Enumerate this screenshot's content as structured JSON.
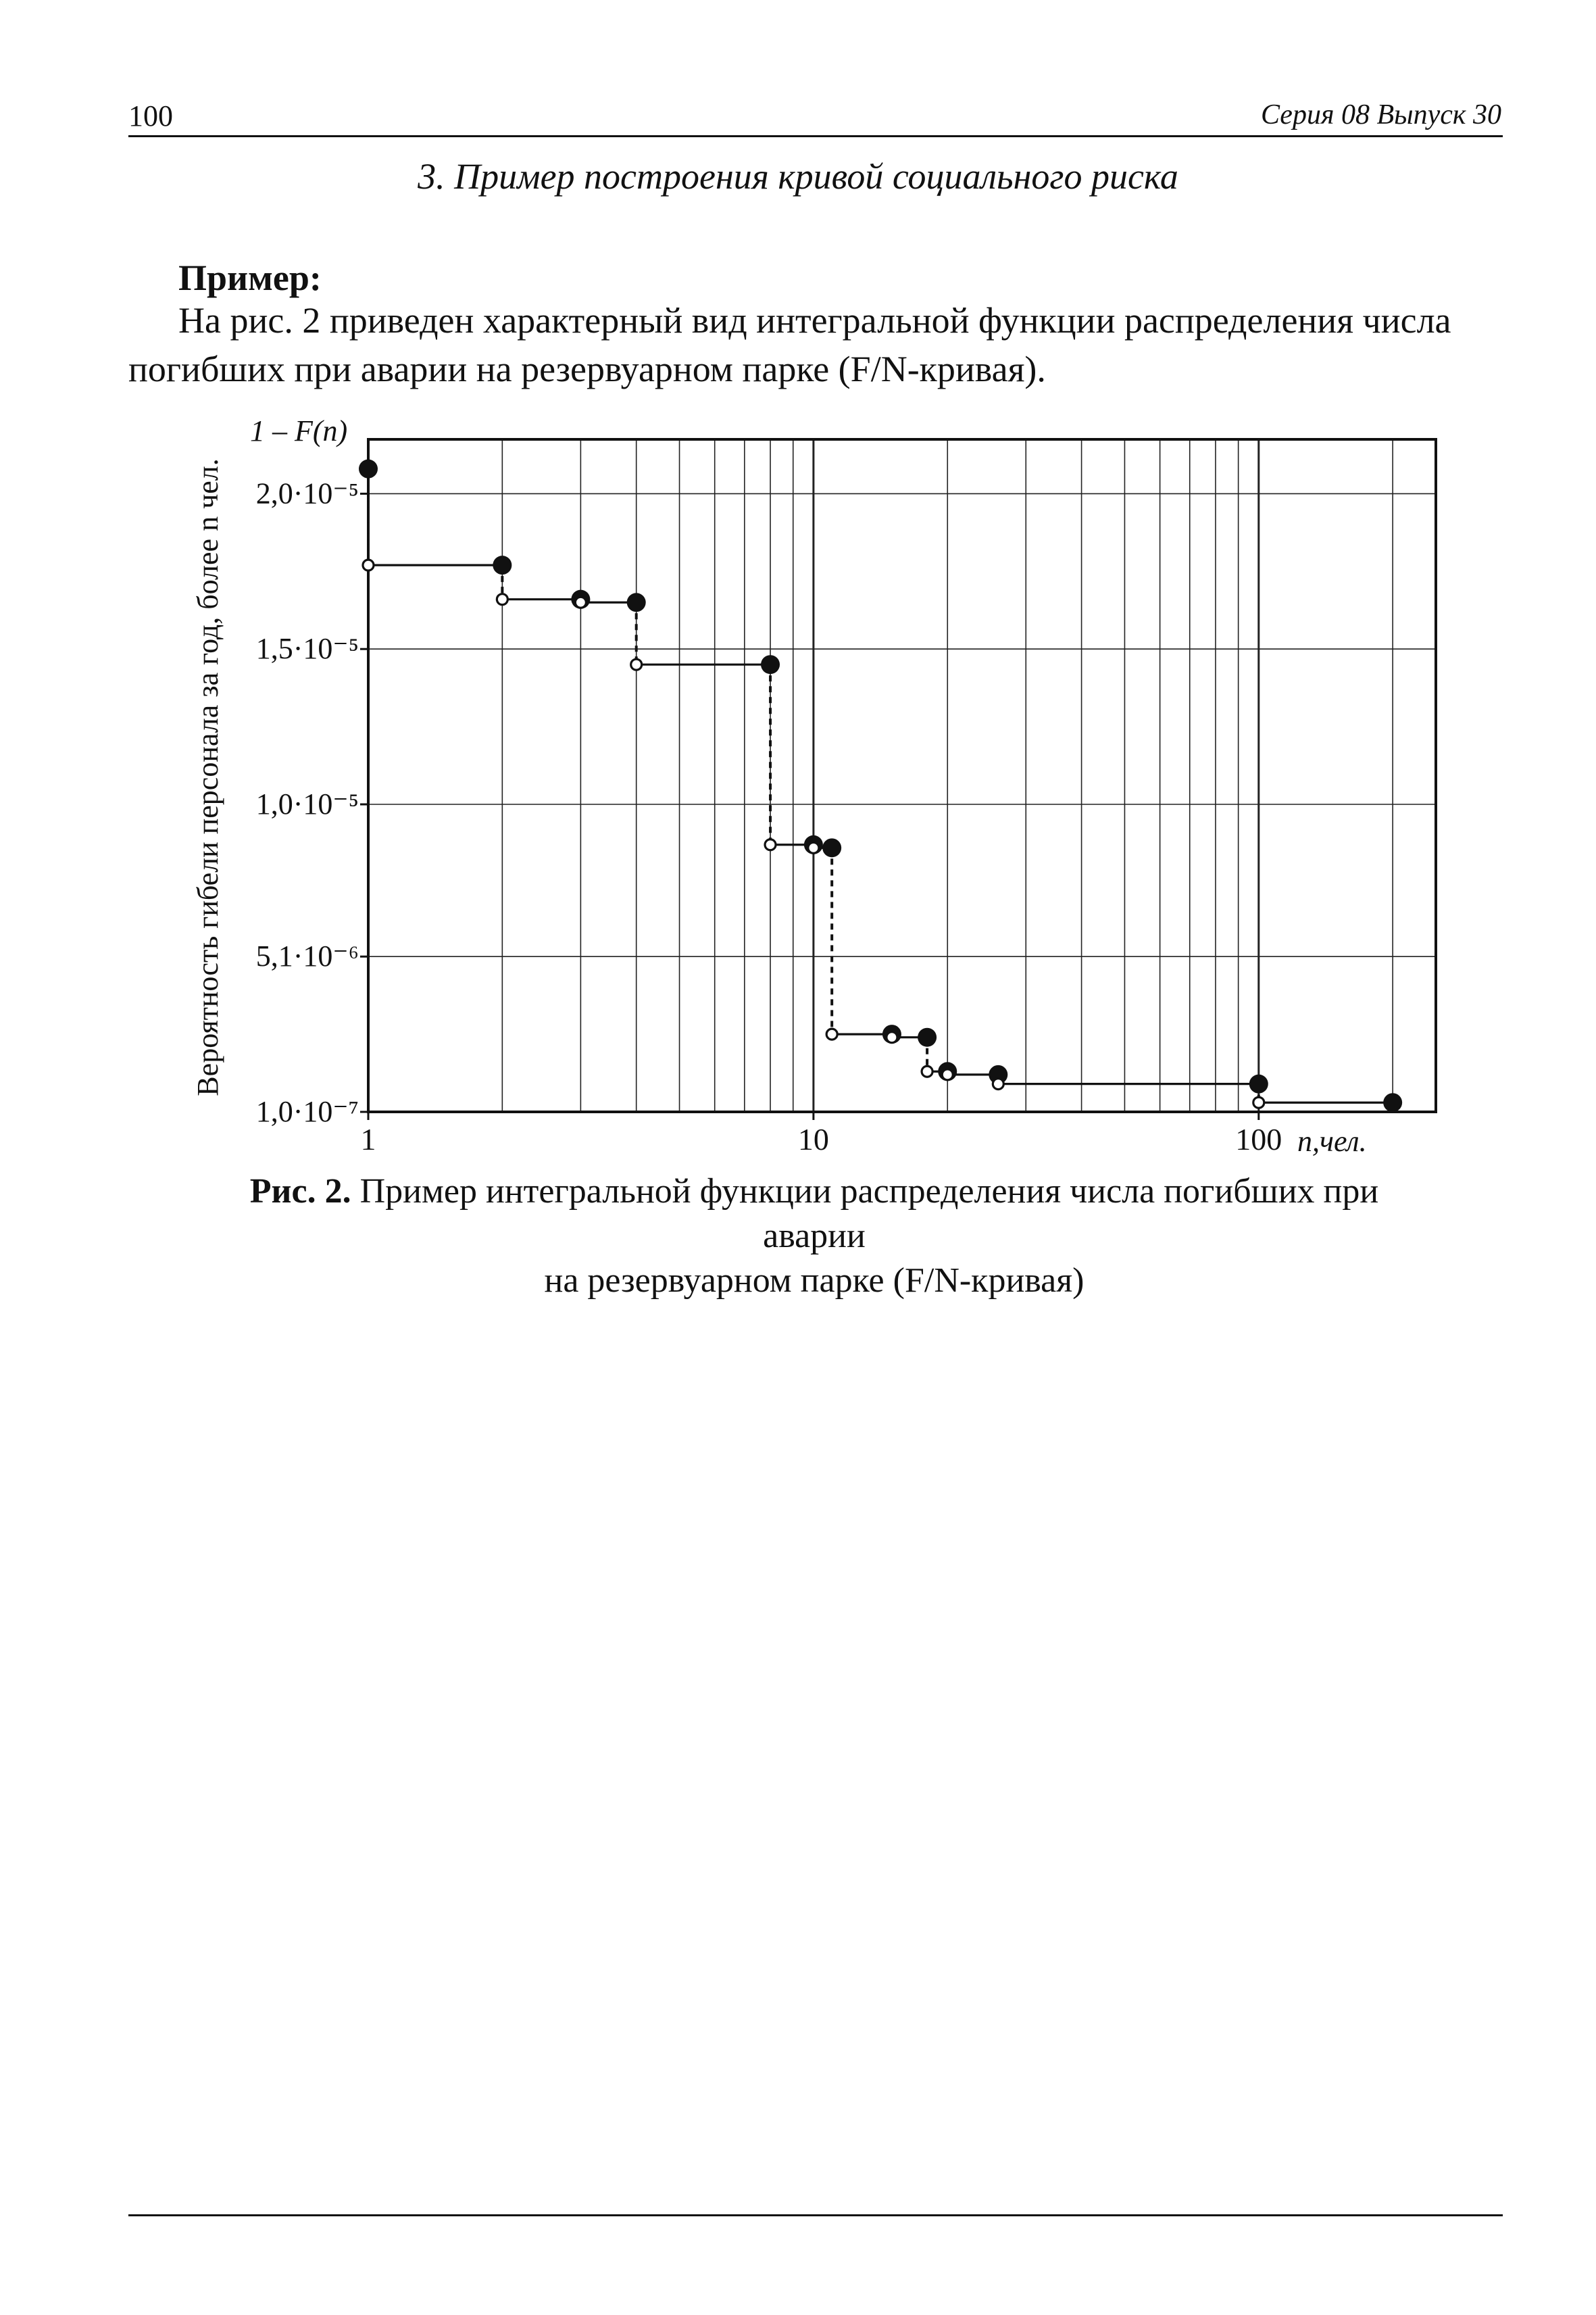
{
  "header": {
    "page_number": "100",
    "running_title": "Серия 08 Выпуск 30"
  },
  "section_title": "3. Пример построения кривой социального риска",
  "example_label": "Пример:",
  "paragraph": {
    "line1": "На рис. 2 приведен характерный вид интегральной функции распределения числа",
    "line2": "погибших при аварии на резервуарном парке (F/N-кривая)."
  },
  "caption": {
    "label": "Рис. 2.",
    "text_line1": " Пример интегральной функции распределения числа погибших при аварии",
    "text_line2": "на резервуарном парке (F/N-кривая)"
  },
  "chart_data": {
    "type": "line",
    "xscale": "log",
    "xlim": [
      1,
      250
    ],
    "ylim": [
      1e-07,
      2.175e-05
    ],
    "ylabel_top": "1 – F(n)",
    "ylabel_side": "Вероятность гибели персонала за год, более n чел.",
    "xlabel": "n,чел.",
    "yticks": [
      {
        "value": 1e-07,
        "label": "1,0·10⁻⁷"
      },
      {
        "value": 5.1e-06,
        "label": "5,1·10⁻⁶"
      },
      {
        "value": 1e-05,
        "label": "1,0·10⁻⁵"
      },
      {
        "value": 1.5e-05,
        "label": "1,5·10⁻⁵"
      },
      {
        "value": 2e-05,
        "label": "2,0·10⁻⁵"
      }
    ],
    "xticks": [
      {
        "value": 1,
        "label": "1"
      },
      {
        "value": 10,
        "label": "10"
      },
      {
        "value": 100,
        "label": "100"
      }
    ],
    "grid": true,
    "steps": [
      {
        "x_start": 1,
        "x_end": 2,
        "y": 1.77e-05,
        "y_prev": 2.08e-05
      },
      {
        "x_start": 2,
        "x_end": 3,
        "y": 1.66e-05,
        "y_prev": 1.77e-05
      },
      {
        "x_start": 3,
        "x_end": 4,
        "y": 1.65e-05,
        "y_prev": 1.66e-05
      },
      {
        "x_start": 4,
        "x_end": 8,
        "y": 1.45e-05,
        "y_prev": 1.65e-05
      },
      {
        "x_start": 8,
        "x_end": 10,
        "y": 8.7e-06,
        "y_prev": 1.45e-05
      },
      {
        "x_start": 10,
        "x_end": 11,
        "y": 8.6e-06,
        "y_prev": 8.7e-06
      },
      {
        "x_start": 11,
        "x_end": 15,
        "y": 2.6e-06,
        "y_prev": 8.6e-06
      },
      {
        "x_start": 15,
        "x_end": 18,
        "y": 2.5e-06,
        "y_prev": 2.6e-06
      },
      {
        "x_start": 18,
        "x_end": 20,
        "y": 1.4e-06,
        "y_prev": 2.5e-06
      },
      {
        "x_start": 20,
        "x_end": 26,
        "y": 1.3e-06,
        "y_prev": 1.4e-06
      },
      {
        "x_start": 26,
        "x_end": 100,
        "y": 1e-06,
        "y_prev": 1.3e-06
      },
      {
        "x_start": 100,
        "x_end": 200,
        "y": 4e-07,
        "y_prev": 1e-06
      }
    ]
  }
}
